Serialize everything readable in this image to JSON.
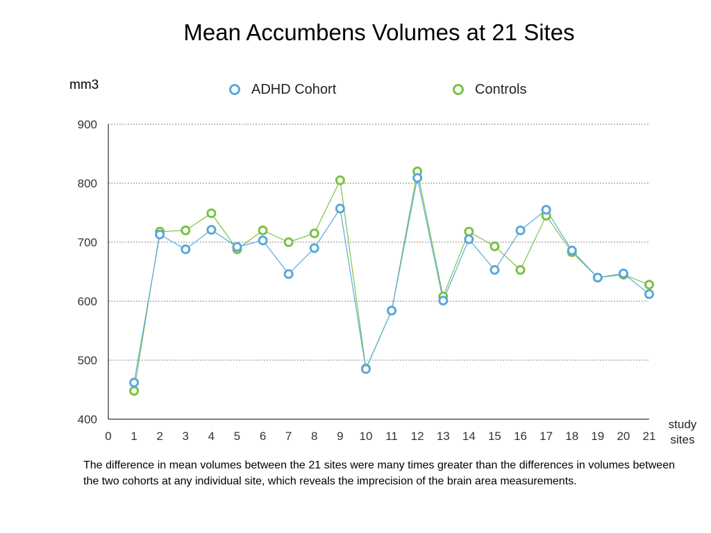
{
  "colors": {
    "adhd": "#5aa7dc",
    "controls": "#7ac143",
    "axis": "#000000",
    "grid": "#808080"
  },
  "chart_data": {
    "type": "line",
    "title": "Mean Accumbens Volumes at 21 Sites",
    "ylabel": "mm3",
    "xlabel_lines": [
      "study",
      "sites"
    ],
    "ylim": [
      400,
      900
    ],
    "yticks": [
      400,
      500,
      600,
      700,
      800,
      900
    ],
    "xlim": [
      0,
      21
    ],
    "xticks": [
      0,
      1,
      2,
      3,
      4,
      5,
      6,
      7,
      8,
      9,
      10,
      11,
      12,
      13,
      14,
      15,
      16,
      17,
      18,
      19,
      20,
      21
    ],
    "grid": "horizontal dotted",
    "legend_position": "top",
    "x": [
      1,
      2,
      3,
      4,
      5,
      6,
      7,
      8,
      9,
      10,
      11,
      12,
      13,
      14,
      15,
      16,
      17,
      18,
      19,
      20,
      21
    ],
    "series": [
      {
        "name": "ADHD Cohort",
        "color": "#5aa7dc",
        "values": [
          462,
          713,
          688,
          721,
          692,
          703,
          646,
          690,
          757,
          485,
          584,
          809,
          601,
          705,
          653,
          720,
          755,
          686,
          640,
          647,
          612
        ]
      },
      {
        "name": "Controls",
        "color": "#7ac143",
        "values": [
          448,
          718,
          720,
          749,
          688,
          720,
          700,
          715,
          805,
          486,
          584,
          820,
          608,
          718,
          693,
          653,
          745,
          683,
          640,
          645,
          628
        ]
      }
    ]
  },
  "caption": "The difference in mean volumes between the 21 sites were many times greater than the differences in volumes between the two cohorts at any individual site, which reveals the imprecision of the brain area measurements."
}
